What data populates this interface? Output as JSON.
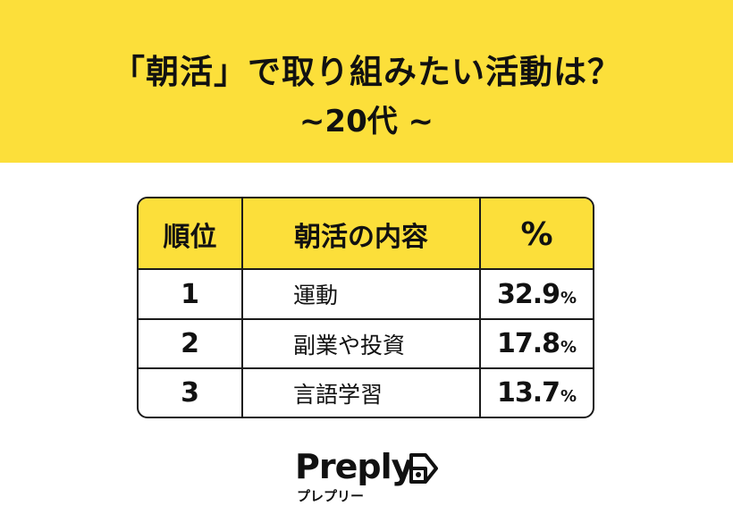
{
  "title": {
    "line1": "「朝活」で取り組みたい活動は？",
    "line2": "~20代 ~"
  },
  "colors": {
    "accent": "#FCDF3A",
    "border": "#1a1a1a"
  },
  "chart_data": {
    "type": "table",
    "columns": [
      "順位",
      "朝活の内容",
      "%"
    ],
    "rows": [
      {
        "rank": "1",
        "activity": "運動",
        "value": "32.9",
        "unit": "%"
      },
      {
        "rank": "2",
        "activity": "副業や投資",
        "value": "17.8",
        "unit": "%"
      },
      {
        "rank": "3",
        "activity": "言語学習",
        "value": "13.7",
        "unit": "%"
      }
    ]
  },
  "logo": {
    "wordmark": "Preply",
    "kana": "プレプリー",
    "icon": "preply-arrow-icon"
  }
}
